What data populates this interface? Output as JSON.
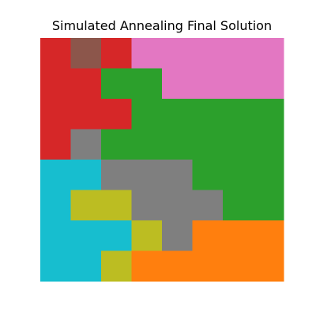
{
  "chart_data": {
    "type": "heatmap",
    "title": "Simulated Annealing Final Solution",
    "rows": 8,
    "cols": 8,
    "axes_visible": false,
    "palette": {
      "0": "#d62728",
      "1": "#8c564b",
      "2": "#e377c2",
      "3": "#2ca02c",
      "4": "#7f7f7f",
      "5": "#17becf",
      "6": "#bcbd22",
      "7": "#ff7f0e"
    },
    "grid": [
      [
        0,
        1,
        0,
        2,
        2,
        2,
        2,
        2
      ],
      [
        0,
        0,
        3,
        3,
        2,
        2,
        2,
        2
      ],
      [
        0,
        0,
        0,
        3,
        3,
        3,
        3,
        3
      ],
      [
        0,
        4,
        3,
        3,
        3,
        3,
        3,
        3
      ],
      [
        5,
        5,
        4,
        4,
        4,
        3,
        3,
        3
      ],
      [
        5,
        6,
        6,
        4,
        4,
        4,
        3,
        3
      ],
      [
        5,
        5,
        5,
        6,
        4,
        7,
        7,
        7
      ],
      [
        5,
        5,
        6,
        7,
        7,
        7,
        7,
        7
      ]
    ]
  }
}
